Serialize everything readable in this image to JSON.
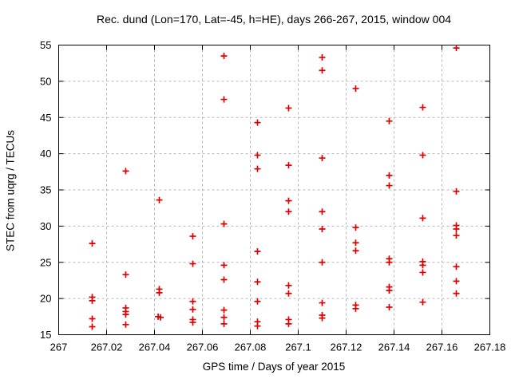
{
  "chart_data": {
    "type": "scatter",
    "title": "Rec. dund (Lon=170, Lat=-45, h=HE), days 266-267, 2015, window 004",
    "xlabel": "GPS time / Days of year 2015",
    "ylabel": "STEC from uqrg / TECUs",
    "xlim": [
      267.0,
      267.18
    ],
    "ylim": [
      15,
      55
    ],
    "xticks": [
      267.0,
      267.02,
      267.04,
      267.06,
      267.08,
      267.1,
      267.12,
      267.14,
      267.16,
      267.18
    ],
    "xtick_labels": [
      "267",
      "267.02",
      "267.04",
      "267.06",
      "267.08",
      "267.1",
      "267.12",
      "267.14",
      "267.16",
      "267.18"
    ],
    "yticks": [
      15,
      20,
      25,
      30,
      35,
      40,
      45,
      50,
      55
    ],
    "ytick_labels": [
      "15",
      "20",
      "25",
      "30",
      "35",
      "40",
      "45",
      "50",
      "55"
    ],
    "grid": true,
    "legend": "none",
    "marker": {
      "shape": "plus",
      "color": "#dd0000"
    },
    "colors": {
      "border": "#000000",
      "grid": "#b8b8b8",
      "background": "#ffffff",
      "text": "#000000"
    },
    "series": [
      {
        "name": "STEC",
        "points": [
          [
            267.014,
            27.6
          ],
          [
            267.014,
            20.2
          ],
          [
            267.014,
            19.7
          ],
          [
            267.014,
            17.2
          ],
          [
            267.014,
            16.1
          ],
          [
            267.028,
            37.6
          ],
          [
            267.028,
            23.3
          ],
          [
            267.028,
            18.7
          ],
          [
            267.028,
            18.2
          ],
          [
            267.028,
            17.8
          ],
          [
            267.028,
            16.4
          ],
          [
            267.042,
            33.6
          ],
          [
            267.042,
            21.3
          ],
          [
            267.042,
            20.8
          ],
          [
            267.0415,
            17.5
          ],
          [
            267.0425,
            17.4
          ],
          [
            267.056,
            28.6
          ],
          [
            267.056,
            24.8
          ],
          [
            267.056,
            19.6
          ],
          [
            267.056,
            18.5
          ],
          [
            267.056,
            17.1
          ],
          [
            267.056,
            16.7
          ],
          [
            267.069,
            53.5
          ],
          [
            267.069,
            47.5
          ],
          [
            267.069,
            30.3
          ],
          [
            267.069,
            24.6
          ],
          [
            267.069,
            22.6
          ],
          [
            267.069,
            18.4
          ],
          [
            267.069,
            17.4
          ],
          [
            267.069,
            16.5
          ],
          [
            267.083,
            44.3
          ],
          [
            267.083,
            39.8
          ],
          [
            267.083,
            37.9
          ],
          [
            267.083,
            26.5
          ],
          [
            267.083,
            22.3
          ],
          [
            267.083,
            19.6
          ],
          [
            267.083,
            16.8
          ],
          [
            267.083,
            16.2
          ],
          [
            267.096,
            46.3
          ],
          [
            267.096,
            38.4
          ],
          [
            267.096,
            33.5
          ],
          [
            267.096,
            32.0
          ],
          [
            267.096,
            21.8
          ],
          [
            267.096,
            20.7
          ],
          [
            267.096,
            17.1
          ],
          [
            267.096,
            16.5
          ],
          [
            267.11,
            53.3
          ],
          [
            267.11,
            51.5
          ],
          [
            267.11,
            39.4
          ],
          [
            267.11,
            32.0
          ],
          [
            267.11,
            29.6
          ],
          [
            267.11,
            25.0
          ],
          [
            267.11,
            19.4
          ],
          [
            267.11,
            17.7
          ],
          [
            267.11,
            17.3
          ],
          [
            267.124,
            49.0
          ],
          [
            267.124,
            29.8
          ],
          [
            267.124,
            27.7
          ],
          [
            267.124,
            26.6
          ],
          [
            267.124,
            19.1
          ],
          [
            267.124,
            18.6
          ],
          [
            267.138,
            44.5
          ],
          [
            267.138,
            37.0
          ],
          [
            267.138,
            35.6
          ],
          [
            267.138,
            25.5
          ],
          [
            267.138,
            25.0
          ],
          [
            267.138,
            21.6
          ],
          [
            267.138,
            21.1
          ],
          [
            267.138,
            18.8
          ],
          [
            267.152,
            46.4
          ],
          [
            267.152,
            39.8
          ],
          [
            267.152,
            31.1
          ],
          [
            267.152,
            25.1
          ],
          [
            267.152,
            24.6
          ],
          [
            267.152,
            23.6
          ],
          [
            267.152,
            19.5
          ],
          [
            267.166,
            54.6
          ],
          [
            267.166,
            34.8
          ],
          [
            267.166,
            30.1
          ],
          [
            267.166,
            29.6
          ],
          [
            267.166,
            28.7
          ],
          [
            267.166,
            24.4
          ],
          [
            267.166,
            22.4
          ],
          [
            267.166,
            20.7
          ]
        ]
      }
    ]
  }
}
